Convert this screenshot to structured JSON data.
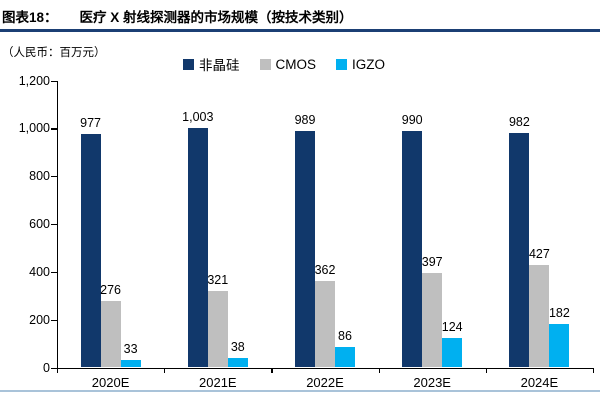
{
  "header": {
    "figure_label": "图表18：",
    "title": "医疗 X 射线探测器的市场规模（按技术类别）"
  },
  "chart": {
    "unit_label": "（人民币：百万元）"
  },
  "chart_data": {
    "type": "bar",
    "title": "医疗 X 射线探测器的市场规模（按技术类别）",
    "unit": "人民币：百万元",
    "categories": [
      "2020E",
      "2021E",
      "2022E",
      "2023E",
      "2024E"
    ],
    "series": [
      {
        "id": "amorphous-silicon",
        "name": "非晶硅",
        "color": "#11386B",
        "values": [
          977,
          1003,
          989,
          990,
          982
        ]
      },
      {
        "id": "cmos",
        "name": "CMOS",
        "color": "#BFBFBF",
        "values": [
          276,
          321,
          362,
          397,
          427
        ]
      },
      {
        "id": "igzo",
        "name": "IGZO",
        "color": "#00B0F0",
        "values": [
          33,
          38,
          86,
          124,
          182
        ]
      }
    ],
    "ylim": [
      0,
      1200
    ],
    "ytick_step": 200,
    "grid": false,
    "legend_position": "top",
    "data_labels": true
  },
  "colors": {
    "title_rule": "#1B3F74",
    "axis": "#000000",
    "bottom_rule": "#A9C3D9"
  }
}
